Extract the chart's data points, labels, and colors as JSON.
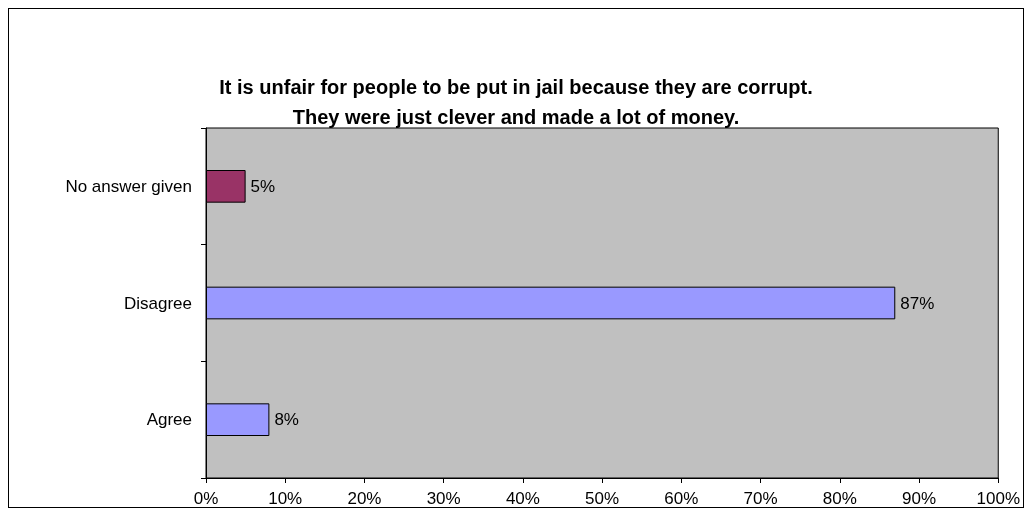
{
  "chart_data": {
    "type": "bar",
    "orientation": "horizontal",
    "title": "It is unfair for people to be put in jail because they are corrupt.\nThey were just clever and made a lot of money.",
    "categories": [
      "No answer given",
      "Disagree",
      "Agree"
    ],
    "values": [
      5,
      87,
      8
    ],
    "colors": [
      "#993366",
      "#9999ff",
      "#9999ff"
    ],
    "value_labels": [
      "5%",
      "87%",
      "8%"
    ],
    "xlim": [
      0,
      100
    ],
    "xticks": [
      {
        "value": 0,
        "label": "0%"
      },
      {
        "value": 10,
        "label": "10%"
      },
      {
        "value": 20,
        "label": "20%"
      },
      {
        "value": 30,
        "label": "30%"
      },
      {
        "value": 40,
        "label": "40%"
      },
      {
        "value": 50,
        "label": "50%"
      },
      {
        "value": 60,
        "label": "60%"
      },
      {
        "value": 70,
        "label": "70%"
      },
      {
        "value": 80,
        "label": "80%"
      },
      {
        "value": 90,
        "label": "90%"
      },
      {
        "value": 100,
        "label": "100%"
      }
    ],
    "grid": false
  }
}
